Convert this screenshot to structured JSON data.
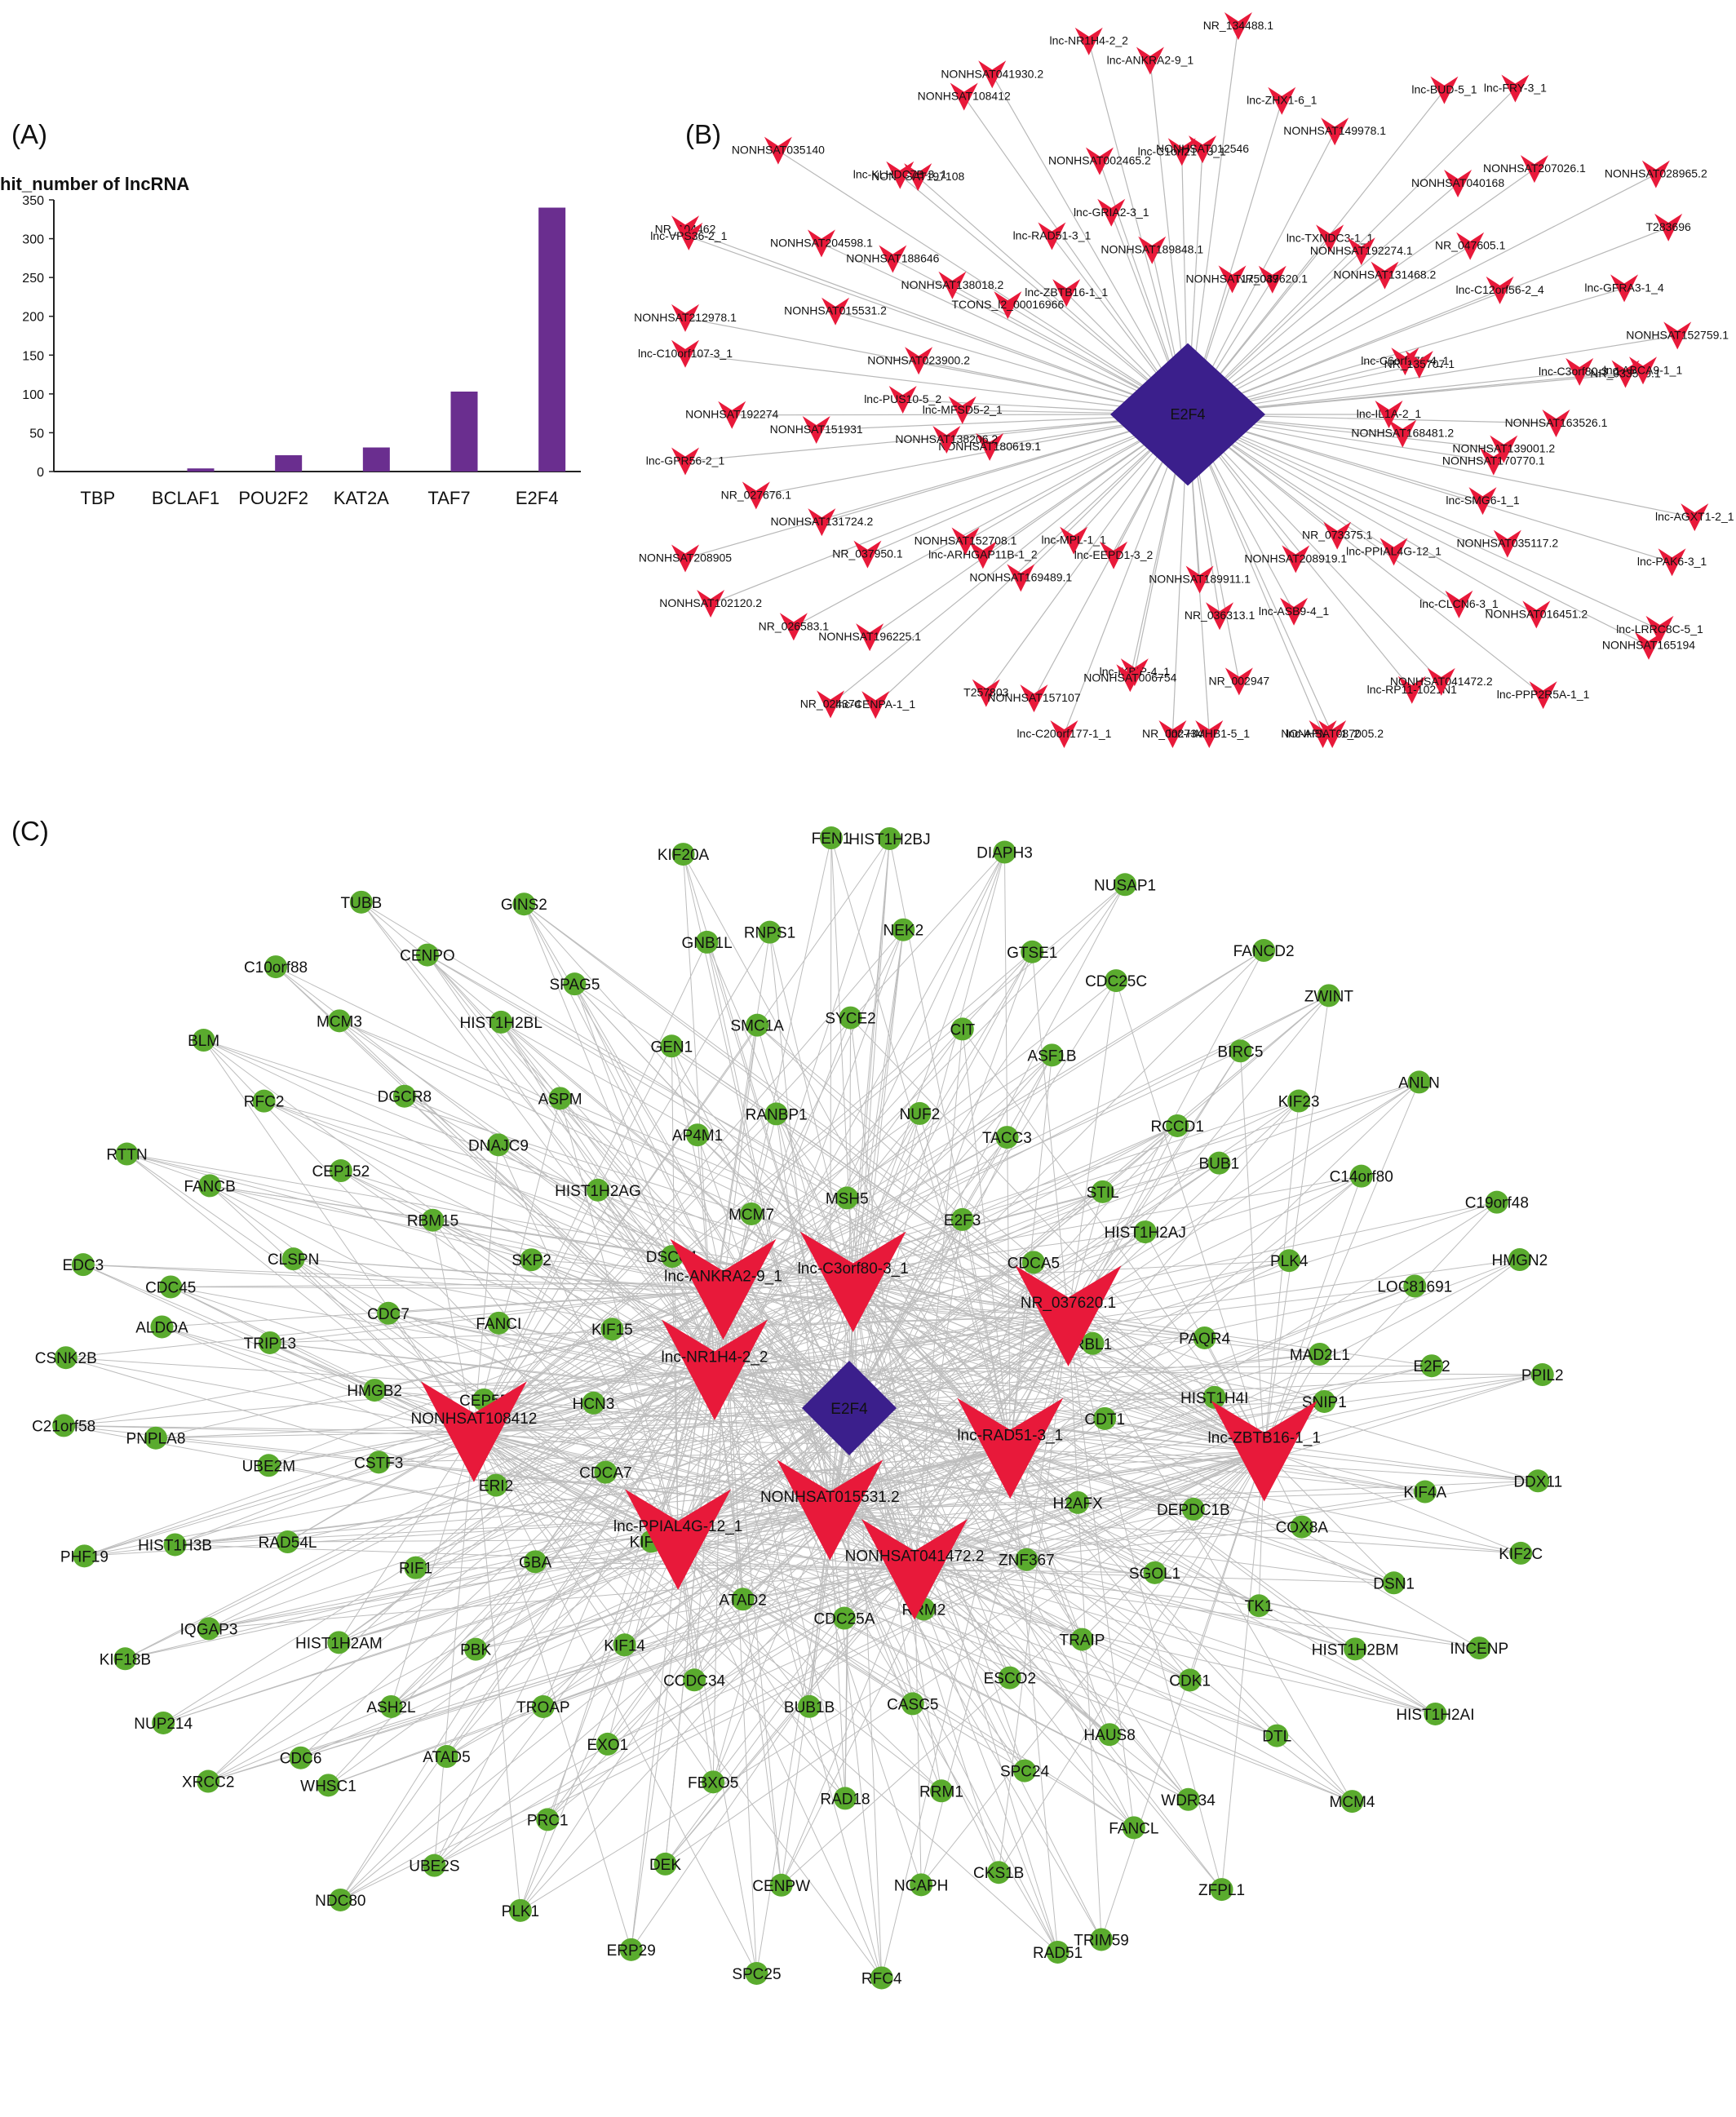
{
  "panel_a": {
    "letter": "(A)",
    "ylabel": "hit_number of lncRNA",
    "bar_color": "#6a2e8f",
    "chart_data": {
      "type": "bar",
      "title": "",
      "xlabel": "",
      "ylabel": "hit_number of lncRNA",
      "ylim": [
        0,
        350
      ],
      "yticks": [
        0,
        50,
        100,
        150,
        200,
        250,
        300,
        350
      ],
      "categories": [
        "TBP",
        "BCLAF1",
        "POU2F2",
        "KAT2A",
        "TAF7",
        "E2F4"
      ],
      "values": [
        0,
        4,
        21,
        31,
        103,
        340
      ],
      "grid": false
    }
  },
  "panel_b": {
    "letter": "(B)",
    "center": "E2F4",
    "center_color": "#3b1f8c",
    "node_color": "#e8193a",
    "edge_color": "#b8b8b8",
    "lncrnas": [
      "lnc-IL1A-2_1",
      "lnc-SMG6-1_1",
      "NONHSAT163526.1",
      "NR_033519.1",
      "lnc-PAK6-3_1",
      "lnc-LRRC8C-5_1",
      "NONHSAT168481.2",
      "NONHSAT170770.1",
      "lnc-CLCN6-3_1",
      "NONHSAT016451.2",
      "lnc-AGXT1-2_1",
      "NONHSAT165194",
      "NONHSAT208919.1",
      "lnc-PPIAL4G-12_1",
      "NONHSAT035117.2",
      "lnc-RP11-1021N1",
      "lnc-APMD-1_2",
      "lnc-PPP2R5A-1_1",
      "NR_073375.1",
      "NR_036313.1",
      "NR_002947",
      "NONHSAT041472.2",
      "NONHSAT087005.2",
      "lnc-C20orf177-1_1",
      "NONHSAT189911.1",
      "lnc-ASB9-4_1",
      "lnc-IKBIP-4_1",
      "T257803",
      "NR_002734",
      "lnc-HMHB1-5_1",
      "lnc-MPL-1_1",
      "NONHSAT169489.1",
      "NONHSAT006754",
      "NONHSAT157107",
      "NR_026583.1",
      "NR_024374",
      "lnc-EEPD1-3_2",
      "lnc-ARHGAP11B-1_2",
      "NONHSAT131724.2",
      "NONHSAT196225.1",
      "lnc-CENPA-1_1",
      "NONHSAT208905",
      "NONHSAT180619.1",
      "NONHSAT152708.1",
      "NR_037950.1",
      "NONHSAT192274",
      "lnc-GPR56-2_1",
      "NONHSAT102120.2",
      "NONHSAT138206.2",
      "NONHSAT023900.2",
      "NONHSAT151931",
      "NR_027676.1",
      "NONHSAT212978.1",
      "NR_104462",
      "lnc-MFSD5-2_1",
      "lnc-PUS10-5_2",
      "NONHSAT188646",
      "NONHSAT204598.1",
      "lnc-C10orf107-3_1",
      "lnc-VPS36-2_1",
      "lnc-ZBTB16-1_1",
      "NONHSAT138018.2",
      "NONHSAT015531.2",
      "NONHSAT197108",
      "NONHSAT041930.2",
      "NONHSAT035140",
      "TCONS_l2_00016966",
      "lnc-GRIA2-3_1",
      "NONHSAT002465.2",
      "lnc-KLHDC7B-3_1",
      "NONHSAT108412",
      "NR_134488.1",
      "NONHSAT189848.1",
      "lnc-RAD51-3_1",
      "lnc-C1orf216-3_1",
      "NONHSAT149978.1",
      "lnc-ANKRA2-9_1",
      "lnc-NR1H4-2_2",
      "NR_037620.1",
      "lnc-TXNDC3-1_1",
      "NONHSAT012546",
      "lnc-ZHX1-6_1",
      "NONHSAT207026.1",
      "lnc-FRY-3_1",
      "NONHSAT175049",
      "NONHSAT192274.1",
      "lnc-C12orf56-2_4",
      "NONHSAT040168",
      "lnc-BUD-5_1",
      "T283696",
      "lnc-C6orf170-4_1",
      "NONHSAT131468.2",
      "NR_047605.1",
      "lnc-ABCA9-1_1",
      "NONHSAT152759.1",
      "NONHSAT028965.2",
      "NR_135707.1",
      "NONHSAT139001.2",
      "lnc-C3orf80-3_1",
      "lnc-GFRA3-1_4"
    ]
  },
  "panel_c": {
    "letter": "(C)",
    "center": "E2F4",
    "center_color": "#3b1f8c",
    "lnc_color": "#e8193a",
    "gene_color": "#5aab2e",
    "edge_color": "#bdbdbd",
    "lncrnas": [
      "lnc-ANKRA2-9_1",
      "lnc-C3orf80-3_1",
      "lnc-NR1H4-2_2",
      "NR_037620.1",
      "NONHSAT108412",
      "lnc-RAD51-3_1",
      "lnc-ZBTB16-1_1",
      "lnc-PPIAL4G-12_1",
      "NONHSAT015531.2",
      "NONHSAT041472.2"
    ],
    "genes": [
      "CDCA7",
      "HCN3",
      "KIF15",
      "DSCC1",
      "MCM7",
      "MSH5",
      "E2F3",
      "CDCA5",
      "RBL1",
      "CDT1",
      "H2AFX",
      "ZNF367",
      "RRM2",
      "CDC25A",
      "ATAD2",
      "KIFC1",
      "HIST1H2AG",
      "AP4M1",
      "RANBP1",
      "NUF2",
      "TACC3",
      "STIL",
      "HIST1H2AJ",
      "PAQR4",
      "HIST1H4I",
      "DEPDC1B",
      "SGOL1",
      "TRAIP",
      "ESCO2",
      "CASC5",
      "BUB1B",
      "CCDC34",
      "KIF14",
      "GBA",
      "ERI2",
      "CEP55",
      "FANCI",
      "SKP2",
      "ASF1B",
      "RCCD1",
      "BUB1",
      "PLK4",
      "MAD2L1",
      "SNIP1",
      "COX8A",
      "TK1",
      "CDK1",
      "HAUS8",
      "SPC24",
      "RRM1",
      "RAD18",
      "FBXO5",
      "EXO1",
      "TROAP",
      "PBK",
      "RIF1",
      "CSTF3",
      "HMGB2",
      "CDC7",
      "RBM15",
      "DNAJC9",
      "ASPM",
      "GEN1",
      "SMC1A",
      "SYCE2",
      "CIT",
      "KIF4A",
      "DSN1",
      "HIST1H2BM",
      "DTL",
      "WDR34",
      "FANCL",
      "CKS1B",
      "NCAPH",
      "CENPW",
      "DEK",
      "PRC1",
      "ATAD5",
      "ASH2L",
      "HIST1H2AM",
      "RAD54L",
      "UBE2M",
      "TRIP13",
      "CLSPN",
      "CEP152",
      "DGCR8",
      "HIST1H2BL",
      "SPAG5",
      "GNB1L",
      "RNPS1",
      "NEK2",
      "GTSE1",
      "CDC25C",
      "BIRC5",
      "KIF23",
      "C14orf80",
      "LOC81691",
      "E2F2",
      "RAD51",
      "RFC4",
      "SPC25",
      "ERP29",
      "PLK1",
      "UBE2S",
      "WHSC1",
      "CDC6",
      "IQGAP3",
      "HIST1H3B",
      "PNPLA8",
      "ALDOA",
      "CDC45",
      "FANCB",
      "RFC2",
      "MCM3",
      "CENPO",
      "GINS2",
      "KIF20A",
      "FEN1",
      "HIST1H2BJ",
      "DIAPH3",
      "NUSAP1",
      "FANCD2",
      "ZWINT",
      "ANLN",
      "C19orf48",
      "HMGN2",
      "PPIL2",
      "DDX11",
      "KIF2C",
      "INCENP",
      "HIST1H2AI",
      "MCM4",
      "ZFPL1",
      "TRIM59",
      "NDC80",
      "XRCC2",
      "NUP214",
      "KIF18B",
      "PHF19",
      "C21orf58",
      "CSNK2B",
      "EDC3",
      "RTTN",
      "BLM",
      "C10orf88",
      "TUBB"
    ]
  }
}
